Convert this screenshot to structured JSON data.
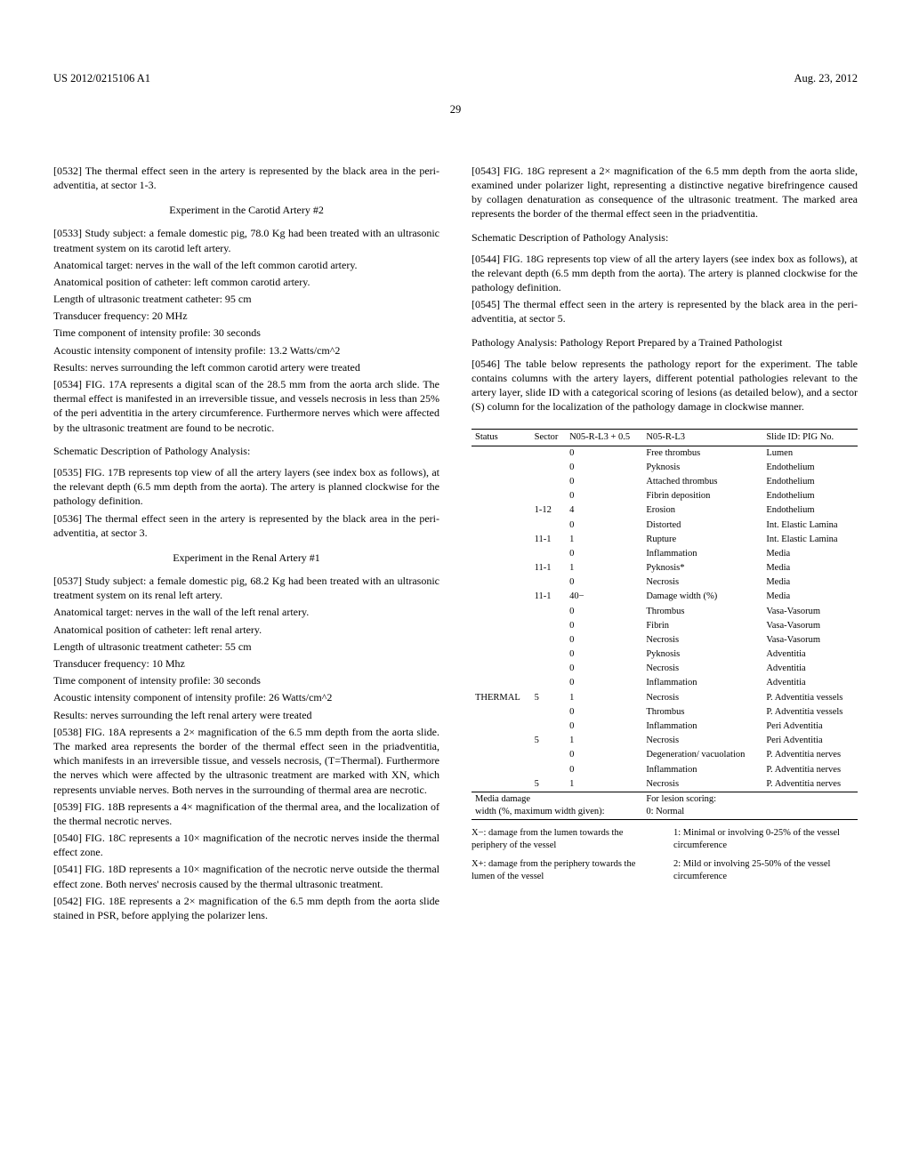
{
  "header": {
    "left": "US 2012/0215106 A1",
    "right": "Aug. 23, 2012"
  },
  "page_number": "29",
  "left_col": {
    "p0532": "[0532]   The thermal effect seen in the artery is represented by the black area in the peri-adventitia, at sector 1-3.",
    "title_carotid2": "Experiment in the Carotid Artery #2",
    "p0533": "[0533]   Study subject: a female domestic pig, 78.0 Kg had been treated with an ultrasonic treatment system on its carotid left artery.",
    "anat_target_1": "Anatomical target: nerves in the wall of the left common carotid artery.",
    "anat_pos_1": "Anatomical position of catheter: left common carotid artery.",
    "length_1": "Length of ultrasonic treatment catheter: 95 cm",
    "freq_1": "Transducer frequency: 20 MHz",
    "time_1": "Time component of intensity profile: 30 seconds",
    "acoustic_1": "Acoustic intensity component of intensity profile: 13.2 Watts/cm^2",
    "results_1": "Results: nerves surrounding the left common carotid artery were treated",
    "p0534": "[0534]   FIG. 17A represents a digital scan of the 28.5 mm from the aorta arch slide. The thermal effect is manifested in an irreversible tissue, and vessels necrosis in less than 25% of the peri adventitia in the artery circumference. Furthermore nerves which were affected by the ultrasonic treatment are found to be necrotic.",
    "schematic_1": "Schematic Description of Pathology Analysis:",
    "p0535": "[0535]   FIG. 17B represents top view of all the artery layers (see index box as follows), at the relevant depth (6.5 mm depth from the aorta). The artery is planned clockwise for the pathology definition.",
    "p0536": "[0536]   The thermal effect seen in the artery is represented by the black area in the peri-adventitia, at sector 3.",
    "title_renal1": "Experiment in the Renal Artery #1",
    "p0537": "[0537]   Study subject: a female domestic pig, 68.2 Kg had been treated with an ultrasonic treatment system on its renal left artery.",
    "anat_target_2": "Anatomical target: nerves in the wall of the left renal artery.",
    "anat_pos_2": "Anatomical position of catheter: left renal artery.",
    "length_2": "Length of ultrasonic treatment catheter: 55 cm",
    "freq_2": "Transducer frequency: 10 Mhz",
    "time_2": "Time component of intensity profile: 30 seconds",
    "acoustic_2": "Acoustic intensity component of intensity profile: 26 Watts/cm^2",
    "results_2": "Results: nerves surrounding the left renal artery were treated",
    "p0538": "[0538]   FIG. 18A represents a 2× magnification of the 6.5 mm depth from the aorta slide. The marked area represents the border of the thermal effect seen in the priadventitia, which manifests in an irreversible tissue, and vessels necrosis, (T=Thermal). Furthermore the nerves which were affected by the ultrasonic treatment are marked with XN, which represents unviable nerves. Both nerves in the surrounding of thermal area are necrotic.",
    "p0539": "[0539]   FIG. 18B represents a 4× magnification of the thermal area, and the localization of the thermal necrotic nerves.",
    "p0540": "[0540]   FIG. 18C represents a 10× magnification of the necrotic nerves inside the thermal effect zone.",
    "p0541": "[0541]   FIG. 18D represents a 10× magnification of the necrotic nerve outside the thermal effect zone. Both nerves' necrosis caused by the thermal ultrasonic treatment.",
    "p0542": "[0542]   FIG. 18E represents a 2× magnification of the 6.5 mm depth from the aorta slide stained in PSR, before applying the polarizer lens."
  },
  "right_col": {
    "p0543": "[0543]   FIG. 18G represent a 2× magnification of the 6.5 mm depth from the aorta slide, examined under polarizer light, representing a distinctive negative birefringence caused by collagen denaturation as consequence of the ultrasonic treatment. The marked area represents the border of the thermal effect seen in the priadventitia.",
    "schematic_2": "Schematic Description of Pathology Analysis:",
    "p0544": "[0544]   FIG. 18G represents top view of all the artery layers (see index box as follows), at the relevant depth (6.5 mm depth from the aorta). The artery is planned clockwise for the pathology definition.",
    "p0545": "[0545]   The thermal effect seen in the artery is represented by the black area in the peri-adventitia, at sector 5.",
    "path_title": "Pathology Analysis: Pathology Report Prepared by a Trained Pathologist",
    "p0546": "[0546]   The table below represents the pathology report for the experiment. The table contains columns with the artery layers, different potential pathologies relevant to the artery layer, slide ID with a categorical scoring of lesions (as detailed below), and a sector (S) column for the localization of the pathology damage in clockwise manner.",
    "table": {
      "headers": [
        "Status",
        "Sector",
        "N05-R-L3 + 0.5",
        "N05-R-L3",
        "Slide ID: PIG No."
      ],
      "rows": [
        [
          "",
          "",
          "0",
          "Free thrombus",
          "Lumen"
        ],
        [
          "",
          "",
          "0",
          "Pyknosis",
          "Endothelium"
        ],
        [
          "",
          "",
          "0",
          "Attached thrombus",
          "Endothelium"
        ],
        [
          "",
          "",
          "0",
          "Fibrin deposition",
          "Endothelium"
        ],
        [
          "",
          "1-12",
          "4",
          "Erosion",
          "Endothelium"
        ],
        [
          "",
          "",
          "0",
          "Distorted",
          "Int. Elastic Lamina"
        ],
        [
          "",
          "11-1",
          "1",
          "Rupture",
          "Int. Elastic Lamina"
        ],
        [
          "",
          "",
          "0",
          "Inflammation",
          "Media"
        ],
        [
          "",
          "11-1",
          "1",
          "Pyknosis*",
          "Media"
        ],
        [
          "",
          "",
          "0",
          "Necrosis",
          "Media"
        ],
        [
          "",
          "11-1",
          "40−",
          "Damage width (%)",
          "Media"
        ],
        [
          "",
          "",
          "0",
          "Thrombus",
          "Vasa-Vasorum"
        ],
        [
          "",
          "",
          "0",
          "Fibrin",
          "Vasa-Vasorum"
        ],
        [
          "",
          "",
          "0",
          "Necrosis",
          "Vasa-Vasorum"
        ],
        [
          "",
          "",
          "0",
          "Pyknosis",
          "Adventitia"
        ],
        [
          "",
          "",
          "0",
          "Necrosis",
          "Adventitia"
        ],
        [
          "",
          "",
          "0",
          "Inflammation",
          "Adventitia"
        ],
        [
          "THERMAL",
          "5",
          "1",
          "Necrosis",
          "P. Adventitia vessels"
        ],
        [
          "",
          "",
          "0",
          "Thrombus",
          "P. Adventitia vessels"
        ],
        [
          "",
          "",
          "0",
          "Inflammation",
          "Peri Adventitia"
        ],
        [
          "",
          "5",
          "1",
          "Necrosis",
          "Peri Adventitia"
        ],
        [
          "",
          "",
          "0",
          "Degeneration/ vacuolation",
          "P. Adventitia nerves"
        ],
        [
          "",
          "",
          "0",
          "Inflammation",
          "P. Adventitia nerves"
        ],
        [
          "",
          "5",
          "1",
          "Necrosis",
          "P. Adventitia nerves"
        ]
      ],
      "footer_left_1": "Media damage",
      "footer_left_2": "width (%, maximum width given):",
      "footer_right_1": "For lesion scoring:",
      "footer_right_2": "0: Normal",
      "fn1_left": "X−: damage from the lumen towards the periphery of the vessel",
      "fn1_right": "1: Minimal or involving 0-25% of the vessel circumference",
      "fn2_left": "X+: damage from the periphery towards the lumen of the vessel",
      "fn2_right": "2: Mild or involving 25-50% of the vessel circumference"
    }
  }
}
